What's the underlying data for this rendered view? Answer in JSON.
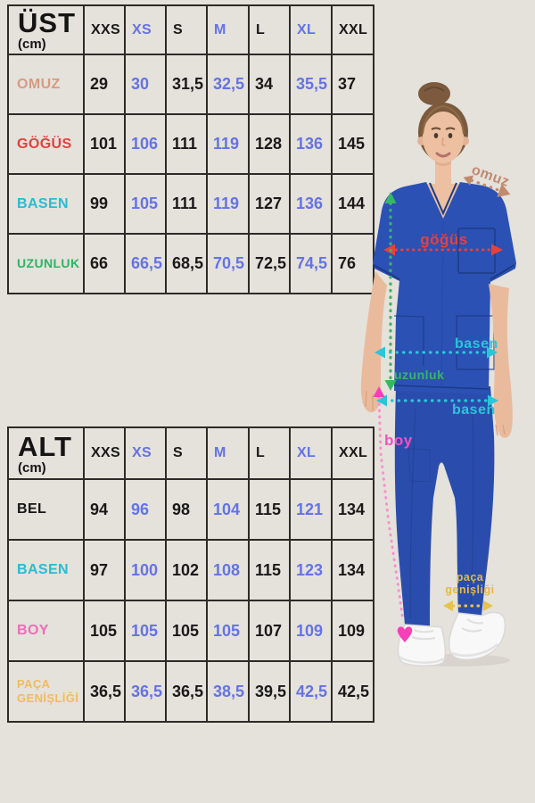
{
  "colors": {
    "background": "#e5e1db",
    "accent": "#6373e6",
    "text": "#191919",
    "border": "#2d2b28",
    "scrub_blue": "#2b51b4"
  },
  "tables": [
    {
      "title": "ÜST",
      "unit": "(cm)",
      "columns": [
        "XXS",
        "XS",
        "S",
        "M",
        "L",
        "XL",
        "XXL"
      ],
      "accent_columns": [
        1,
        3,
        5
      ],
      "rows": [
        {
          "label": "OMUZ",
          "label_color": "#d59c81",
          "values": [
            "29",
            "30",
            "31,5",
            "32,5",
            "34",
            "35,5",
            "37"
          ]
        },
        {
          "label": "GÖĞÜS",
          "label_color": "#e4403d",
          "values": [
            "101",
            "106",
            "111",
            "119",
            "128",
            "136",
            "145"
          ]
        },
        {
          "label": "BASEN",
          "label_color": "#27bcd4",
          "values": [
            "99",
            "105",
            "111",
            "119",
            "127",
            "136",
            "144"
          ]
        },
        {
          "label": "UZUNLUK",
          "label_color": "#2cb564",
          "values": [
            "66",
            "66,5",
            "68,5",
            "70,5",
            "72,5",
            "74,5",
            "76"
          ]
        }
      ]
    },
    {
      "title": "ALT",
      "unit": "(cm)",
      "columns": [
        "XXS",
        "XS",
        "S",
        "M",
        "L",
        "XL",
        "XXL"
      ],
      "accent_columns": [
        1,
        3,
        5
      ],
      "rows": [
        {
          "label": "BEL",
          "label_color": "#161616",
          "values": [
            "94",
            "96",
            "98",
            "104",
            "115",
            "121",
            "134"
          ]
        },
        {
          "label": "BASEN",
          "label_color": "#27bcd4",
          "values": [
            "97",
            "100",
            "102",
            "108",
            "115",
            "123",
            "134"
          ]
        },
        {
          "label": "BOY",
          "label_color": "#ef6db8",
          "values": [
            "105",
            "105",
            "105",
            "105",
            "107",
            "109",
            "109"
          ]
        },
        {
          "label": "PAÇA GENİŞLİĞİ",
          "label_color": "#f1bb60",
          "values": [
            "36,5",
            "36,5",
            "36,5",
            "38,5",
            "39,5",
            "42,5",
            "42,5"
          ]
        }
      ]
    }
  ],
  "figure": {
    "description": "model wearing blue medical scrub suit with measurement guides",
    "annotations": {
      "omuz": {
        "label": "omuz",
        "color": "#c18a6d"
      },
      "gogus": {
        "label": "göğüs",
        "color": "#e8403a"
      },
      "basen_top": {
        "label": "basen",
        "color": "#2bc5d9"
      },
      "uzunluk": {
        "label": "uzunluk",
        "color": "#36b765"
      },
      "basen_alt": {
        "label": "basen",
        "color": "#2bc5d9"
      },
      "boy": {
        "label": "boy",
        "color": "#f84fc1"
      },
      "paca": {
        "line1": "paça",
        "line2": "genişliği",
        "color": "#e0bd3f"
      }
    }
  }
}
